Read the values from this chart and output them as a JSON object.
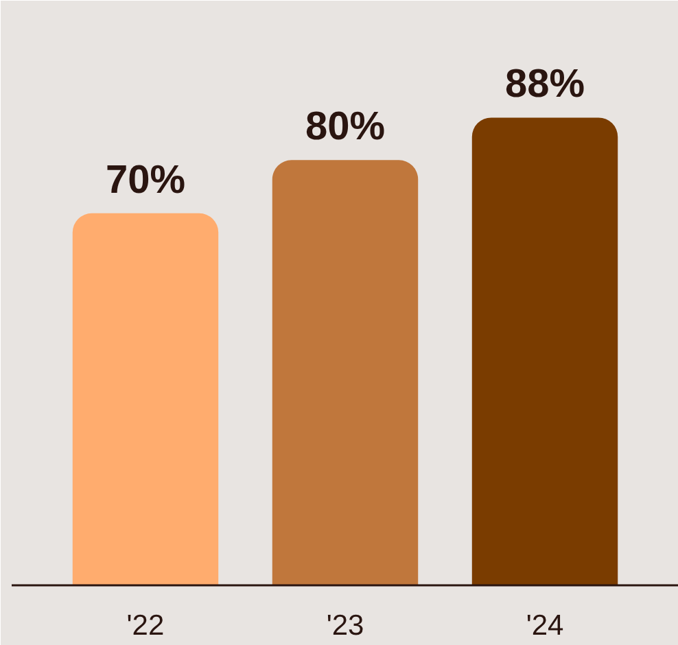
{
  "chart_data": {
    "type": "bar",
    "categories": [
      "'22",
      "'23",
      "'24"
    ],
    "values": [
      70,
      80,
      88
    ],
    "colors": [
      "#ffac6e",
      "#c0773c",
      "#7a3c00"
    ],
    "value_labels": [
      "70%",
      "80%",
      "88%"
    ]
  }
}
